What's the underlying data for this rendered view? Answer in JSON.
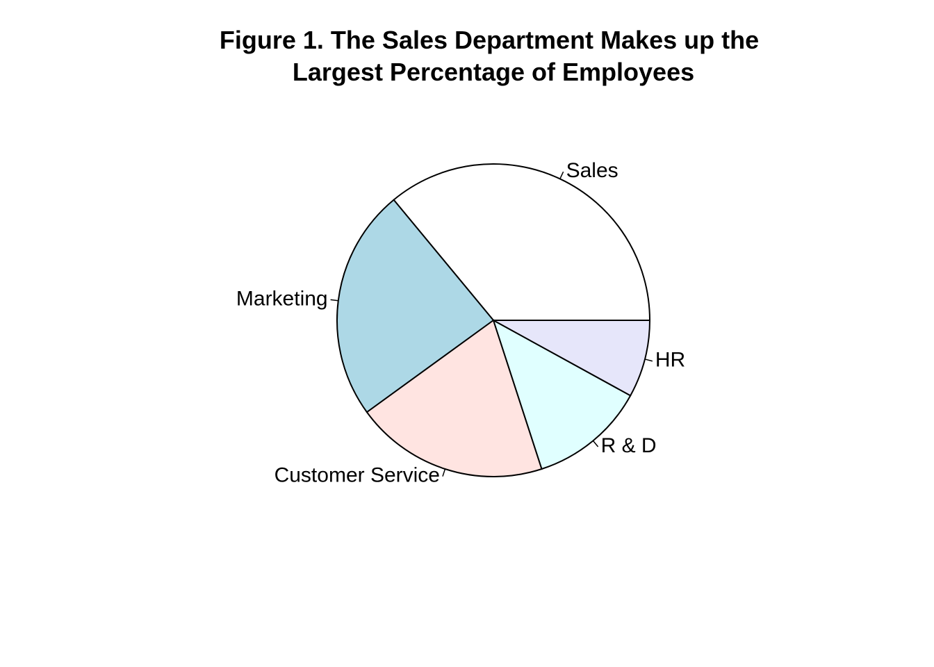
{
  "chart_data": {
    "type": "pie",
    "title_lines": [
      "Figure 1. The Sales Department Makes up the",
      "Largest Percentage of Employees"
    ],
    "slices": [
      {
        "label": "Sales",
        "value": 36,
        "color": "#ffffff"
      },
      {
        "label": "Marketing",
        "value": 24,
        "color": "#add8e6"
      },
      {
        "label": "Customer Service",
        "value": 20,
        "color": "#ffe4e1"
      },
      {
        "label": "R & D",
        "value": 12,
        "color": "#e0ffff"
      },
      {
        "label": "HR",
        "value": 8,
        "color": "#e6e6fa"
      }
    ],
    "start_angle_deg": 0,
    "direction": "counterclockwise",
    "legend": "none"
  }
}
